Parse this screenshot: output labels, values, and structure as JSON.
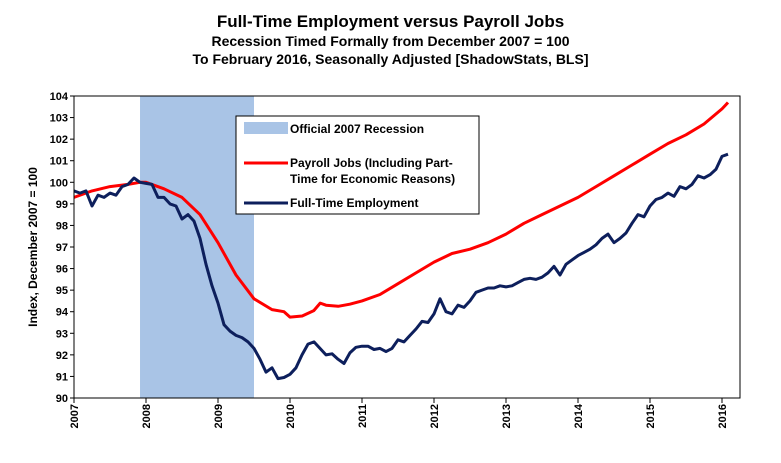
{
  "chart_data": {
    "type": "line",
    "title": "Full-Time Employment  versus Payroll Jobs",
    "subtitle": [
      "Recession Timed Formally from December 2007 = 100",
      "To February 2016, Seasonally Adjusted [ShadowStats, BLS]"
    ],
    "xlabel": "",
    "ylabel": "Index, December 2007 = 100",
    "ylim": [
      90,
      104
    ],
    "yticks": [
      "90",
      "91",
      "92",
      "93",
      "94",
      "95",
      "96",
      "97",
      "98",
      "99",
      "100",
      "101",
      "102",
      "103",
      "104"
    ],
    "xlim": [
      2007.0,
      2016.25
    ],
    "xticks": [
      "2007",
      "2008",
      "2009",
      "2010",
      "2011",
      "2012",
      "2013",
      "2014",
      "2015",
      "2016"
    ],
    "grid": false,
    "legend_placement": "top-center",
    "recession": {
      "label": "Official 2007 Recession",
      "start": 2007.917,
      "end": 2009.5,
      "color": "#a9c4e6"
    },
    "series": [
      {
        "name": "Payroll Jobs (Including Part-Time for Economic Reasons)",
        "color": "#ff0000",
        "x": [
          2007.0,
          2007.25,
          2007.5,
          2007.75,
          2007.917,
          2008.0,
          2008.25,
          2008.5,
          2008.75,
          2009.0,
          2009.25,
          2009.5,
          2009.75,
          2009.917,
          2010.0,
          2010.17,
          2010.33,
          2010.42,
          2010.5,
          2010.67,
          2010.83,
          2011.0,
          2011.25,
          2011.5,
          2011.75,
          2012.0,
          2012.25,
          2012.5,
          2012.75,
          2013.0,
          2013.25,
          2013.5,
          2013.75,
          2014.0,
          2014.25,
          2014.5,
          2014.75,
          2015.0,
          2015.25,
          2015.5,
          2015.75,
          2016.0,
          2016.083
        ],
        "y": [
          99.3,
          99.6,
          99.8,
          99.9,
          100.0,
          100.0,
          99.7,
          99.3,
          98.5,
          97.2,
          95.7,
          94.6,
          94.1,
          94.0,
          93.75,
          93.8,
          94.05,
          94.4,
          94.3,
          94.25,
          94.35,
          94.5,
          94.8,
          95.3,
          95.8,
          96.3,
          96.7,
          96.9,
          97.2,
          97.6,
          98.1,
          98.5,
          98.9,
          99.3,
          99.8,
          100.3,
          100.8,
          101.3,
          101.8,
          102.2,
          102.7,
          103.4,
          103.7
        ]
      },
      {
        "name": "Full-Time Employment",
        "color": "#0d1f5c",
        "x": [
          2007.0,
          2007.083,
          2007.167,
          2007.25,
          2007.333,
          2007.417,
          2007.5,
          2007.583,
          2007.667,
          2007.75,
          2007.833,
          2007.917,
          2008.0,
          2008.083,
          2008.167,
          2008.25,
          2008.333,
          2008.417,
          2008.5,
          2008.583,
          2008.667,
          2008.75,
          2008.833,
          2008.917,
          2009.0,
          2009.083,
          2009.167,
          2009.25,
          2009.333,
          2009.417,
          2009.5,
          2009.583,
          2009.667,
          2009.75,
          2009.833,
          2009.917,
          2010.0,
          2010.083,
          2010.167,
          2010.25,
          2010.333,
          2010.417,
          2010.5,
          2010.583,
          2010.667,
          2010.75,
          2010.833,
          2010.917,
          2011.0,
          2011.083,
          2011.167,
          2011.25,
          2011.333,
          2011.417,
          2011.5,
          2011.583,
          2011.667,
          2011.75,
          2011.833,
          2011.917,
          2012.0,
          2012.083,
          2012.167,
          2012.25,
          2012.333,
          2012.417,
          2012.5,
          2012.583,
          2012.667,
          2012.75,
          2012.833,
          2012.917,
          2013.0,
          2013.083,
          2013.167,
          2013.25,
          2013.333,
          2013.417,
          2013.5,
          2013.583,
          2013.667,
          2013.75,
          2013.833,
          2013.917,
          2014.0,
          2014.083,
          2014.167,
          2014.25,
          2014.333,
          2014.417,
          2014.5,
          2014.583,
          2014.667,
          2014.75,
          2014.833,
          2014.917,
          2015.0,
          2015.083,
          2015.167,
          2015.25,
          2015.333,
          2015.417,
          2015.5,
          2015.583,
          2015.667,
          2015.75,
          2015.833,
          2015.917,
          2016.0,
          2016.083
        ],
        "y": [
          99.6,
          99.5,
          99.6,
          98.9,
          99.4,
          99.3,
          99.5,
          99.4,
          99.8,
          99.9,
          100.2,
          100.0,
          99.95,
          99.9,
          99.3,
          99.3,
          99.0,
          98.9,
          98.3,
          98.5,
          98.2,
          97.4,
          96.2,
          95.2,
          94.4,
          93.4,
          93.1,
          92.9,
          92.8,
          92.6,
          92.3,
          91.8,
          91.2,
          91.4,
          90.9,
          90.95,
          91.1,
          91.4,
          92.0,
          92.5,
          92.6,
          92.3,
          92.0,
          92.05,
          91.8,
          91.6,
          92.1,
          92.35,
          92.4,
          92.4,
          92.25,
          92.3,
          92.15,
          92.3,
          92.7,
          92.6,
          92.9,
          93.2,
          93.55,
          93.5,
          93.9,
          94.6,
          94.0,
          93.9,
          94.3,
          94.2,
          94.5,
          94.9,
          95.0,
          95.1,
          95.1,
          95.2,
          95.15,
          95.2,
          95.35,
          95.5,
          95.55,
          95.5,
          95.6,
          95.8,
          96.1,
          95.7,
          96.2,
          96.4,
          96.6,
          96.75,
          96.9,
          97.1,
          97.4,
          97.6,
          97.2,
          97.4,
          97.65,
          98.1,
          98.5,
          98.4,
          98.9,
          99.2,
          99.3,
          99.5,
          99.35,
          99.8,
          99.7,
          99.9,
          100.3,
          100.2,
          100.35,
          100.6,
          101.2,
          101.3
        ]
      }
    ],
    "legend": [
      {
        "label": "Official 2007 Recession",
        "kind": "box"
      },
      {
        "label": "Payroll Jobs (Including Part-",
        "label2": "Time for Economic Reasons)",
        "kind": "line",
        "color": "#ff0000"
      },
      {
        "label": "Full-Time Employment",
        "kind": "line",
        "color": "#0d1f5c"
      }
    ]
  }
}
